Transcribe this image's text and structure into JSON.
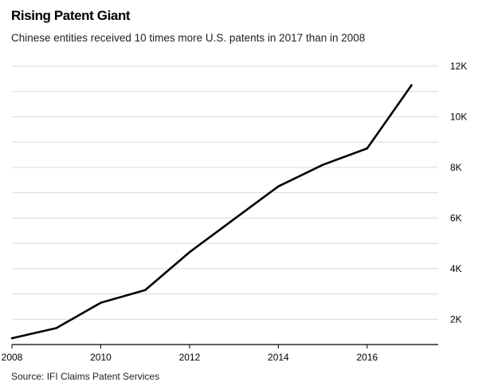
{
  "title": "Rising Patent Giant",
  "subtitle": "Chinese entities received 10 times more U.S. patents in 2017 than in 2008",
  "source": "Source: IFI Claims Patent Services",
  "chart_data": {
    "type": "line",
    "x": [
      2008,
      2009,
      2010,
      2011,
      2012,
      2013,
      2014,
      2015,
      2016,
      2017
    ],
    "series": [
      {
        "values": [
          1250,
          1650,
          2650,
          3150,
          4650,
          5950,
          7250,
          8100,
          8750,
          11250
        ],
        "color": "#000000"
      }
    ],
    "xlim": [
      2008,
      2017.6
    ],
    "ylim": [
      1000,
      12000
    ],
    "x_ticks": [
      2008,
      2010,
      2012,
      2014,
      2016
    ],
    "x_tick_labels": [
      "2008",
      "2010",
      "2012",
      "2014",
      "2016"
    ],
    "y_ticks": [
      1000,
      2000,
      3000,
      4000,
      5000,
      6000,
      7000,
      8000,
      9000,
      10000,
      11000,
      12000
    ],
    "y_tick_labels": [
      "2K",
      "4K",
      "6K",
      "8K",
      "10K",
      "12K"
    ],
    "y_labeled_ticks": [
      2000,
      4000,
      6000,
      8000,
      10000,
      12000
    ],
    "y_axis_side": "right",
    "grid": true,
    "xlabel": "",
    "ylabel": ""
  }
}
